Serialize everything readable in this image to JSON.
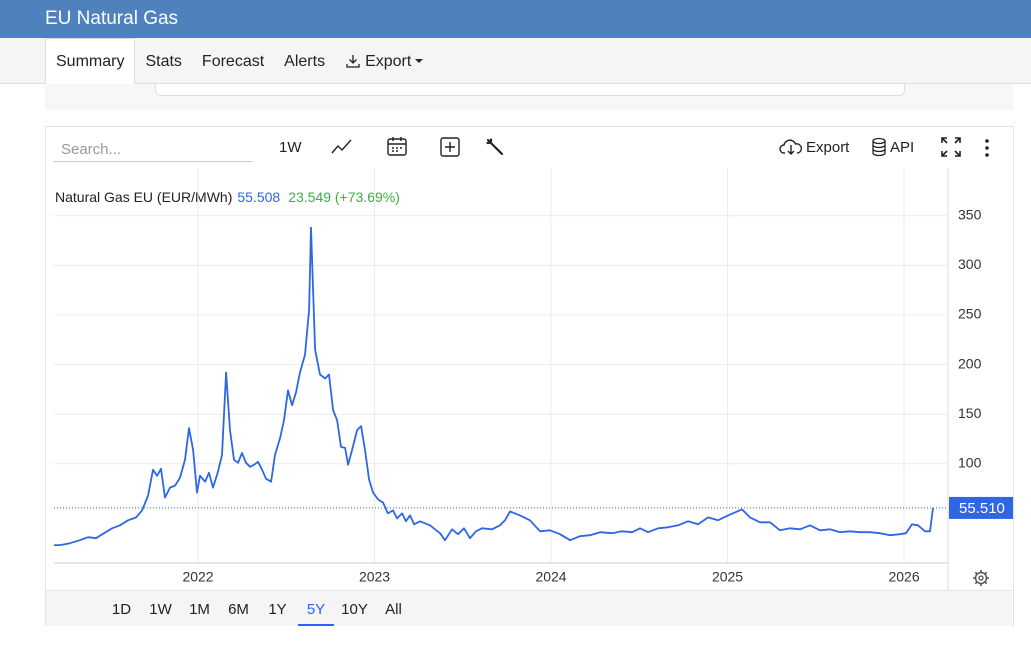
{
  "header": {
    "title": "EU Natural Gas"
  },
  "tabs": [
    "Summary",
    "Stats",
    "Forecast",
    "Alerts",
    "Export"
  ],
  "toolbar": {
    "search_placeholder": "Search...",
    "interval": "1W",
    "export": "Export",
    "api": "API"
  },
  "ranges": [
    "1D",
    "1W",
    "1M",
    "6M",
    "1Y",
    "5Y",
    "10Y",
    "All"
  ],
  "chart_data": {
    "type": "line",
    "legend_price": "55.508",
    "legend_change": "23.549 (+73.69%)",
    "price_tag": "55.510",
    "x": [
      2021.184,
      2021.218,
      2021.275,
      2021.331,
      2021.377,
      2021.422,
      2021.467,
      2021.513,
      2021.558,
      2021.603,
      2021.649,
      2021.683,
      2021.717,
      2021.745,
      2021.768,
      2021.79,
      2021.813,
      2021.841,
      2021.87,
      2021.898,
      2021.926,
      2021.949,
      2021.972,
      2021.994,
      2022.011,
      2022.04,
      2022.062,
      2022.085,
      2022.113,
      2022.136,
      2022.159,
      2022.181,
      2022.204,
      2022.227,
      2022.249,
      2022.272,
      2022.295,
      2022.317,
      2022.34,
      2022.363,
      2022.385,
      2022.414,
      2022.436,
      2022.465,
      2022.487,
      2022.51,
      2022.533,
      2022.555,
      2022.578,
      2022.606,
      2022.629,
      2022.64,
      2022.663,
      2022.691,
      2022.72,
      2022.742,
      2022.765,
      2022.788,
      2022.81,
      2022.833,
      2022.85,
      2022.873,
      2022.901,
      2022.924,
      2022.946,
      2022.969,
      2022.992,
      2023.02,
      2023.048,
      2023.076,
      2023.105,
      2023.127,
      2023.156,
      2023.178,
      2023.201,
      2023.224,
      2023.258,
      2023.314,
      2023.371,
      2023.399,
      2023.439,
      2023.473,
      2023.507,
      2023.541,
      2023.575,
      2023.609,
      2023.666,
      2023.711,
      2023.739,
      2023.768,
      2023.824,
      2023.881,
      2023.938,
      2023.994,
      2024.051,
      2024.108,
      2024.164,
      2024.221,
      2024.278,
      2024.346,
      2024.402,
      2024.459,
      2024.504,
      2024.55,
      2024.606,
      2024.663,
      2024.72,
      2024.776,
      2024.833,
      2024.89,
      2024.946,
      2025.003,
      2025.042,
      2025.082,
      2025.127,
      2025.184,
      2025.241,
      2025.297,
      2025.354,
      2025.411,
      2025.467,
      2025.524,
      2025.581,
      2025.637,
      2025.694,
      2025.751,
      2025.807,
      2025.864,
      2025.921,
      2025.977,
      2026.011,
      2026.045,
      2026.079,
      2026.119,
      2026.147,
      2026.164
    ],
    "series": [
      {
        "name": "Natural Gas EU (EUR/MWh)",
        "color": "#2f66e4",
        "values": [
          18,
          18,
          20,
          23,
          26,
          25,
          30,
          35,
          38,
          43,
          46,
          53,
          68,
          94,
          88,
          95,
          66,
          76,
          78,
          86,
          104,
          136,
          114,
          71,
          88,
          82,
          91,
          76,
          92,
          109,
          192,
          134,
          104,
          101,
          111,
          101,
          97,
          99,
          102,
          94,
          85,
          82,
          109,
          126,
          144,
          174,
          159,
          172,
          192,
          210,
          255,
          338,
          215,
          190,
          186,
          190,
          154,
          144,
          117,
          116,
          99,
          114,
          134,
          138,
          114,
          84,
          71,
          64,
          61,
          50,
          53,
          45,
          50,
          42,
          48,
          39,
          42,
          38,
          30,
          23,
          34,
          29,
          35,
          25,
          32,
          35,
          34,
          38,
          43,
          52,
          48,
          43,
          32,
          33,
          29,
          23,
          27,
          28,
          31,
          30,
          32,
          31,
          35,
          31,
          35,
          36,
          38,
          42,
          39,
          46,
          43,
          48,
          51,
          54,
          46,
          41,
          41,
          33,
          35,
          34,
          38,
          33,
          34,
          31,
          32,
          31,
          31,
          30,
          28,
          29,
          30,
          39,
          38,
          32,
          32,
          55.51
        ]
      }
    ],
    "xlim": [
      2021.184,
      2026.249
    ],
    "xticks": [
      2022,
      2023,
      2024,
      2025,
      2026
    ],
    "ylim": [
      0,
      400
    ],
    "yticks": [
      100,
      150,
      200,
      250,
      300,
      350
    ],
    "grid": true
  }
}
